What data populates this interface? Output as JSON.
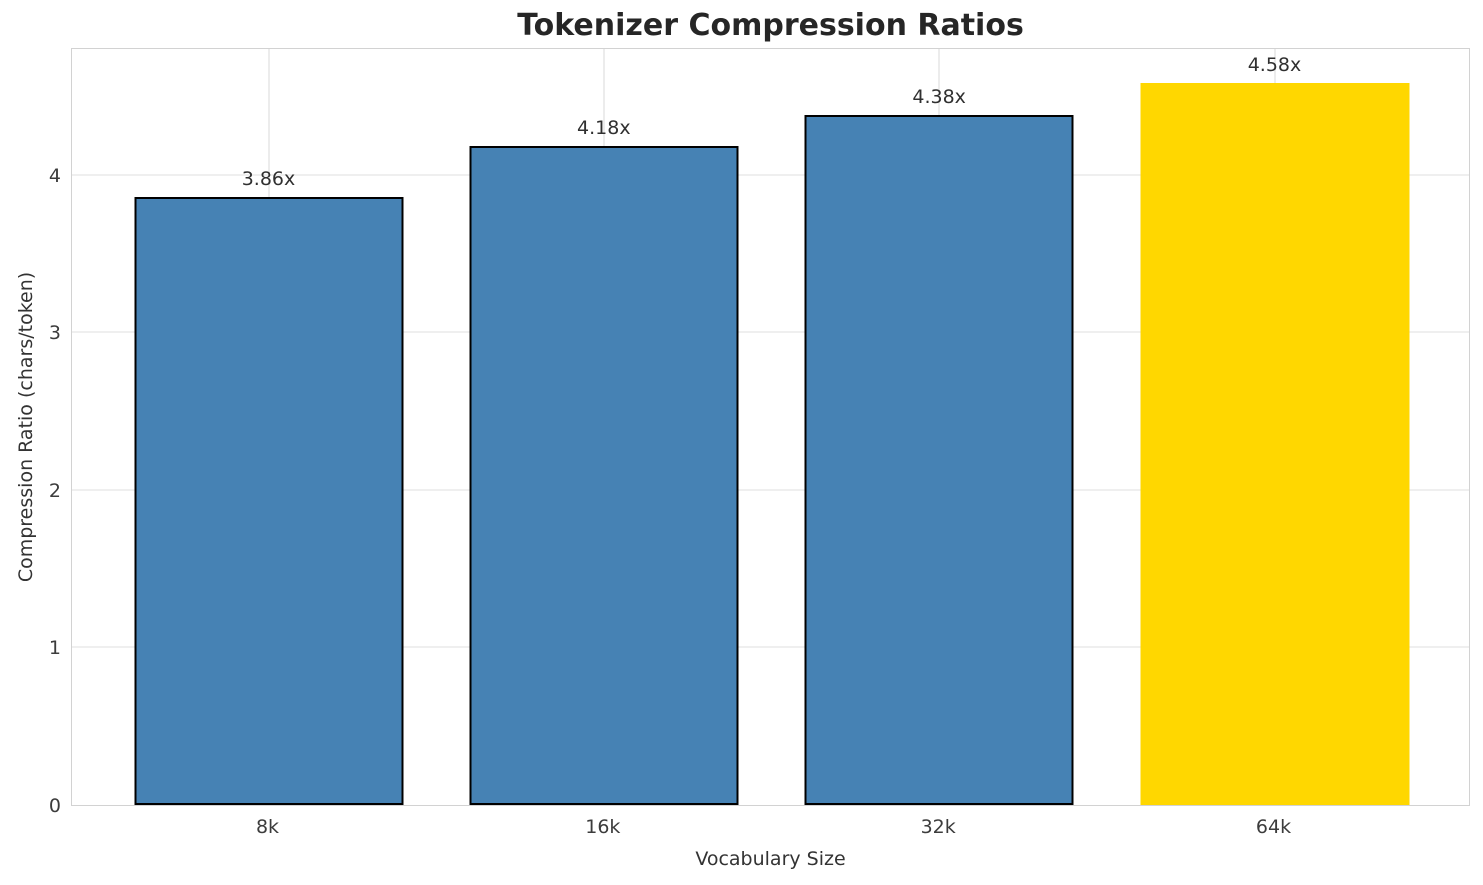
{
  "title": "Tokenizer Compression Ratios",
  "chart_data": {
    "type": "bar",
    "title": "Tokenizer Compression Ratios",
    "xlabel": "Vocabulary Size",
    "ylabel": "Compression Ratio (chars/token)",
    "categories": [
      "8k",
      "16k",
      "32k",
      "64k"
    ],
    "values": [
      3.86,
      4.18,
      4.38,
      4.58
    ],
    "bar_labels": [
      "3.86x",
      "4.18x",
      "4.38x",
      "4.58x"
    ],
    "yticks": [
      0,
      1,
      2,
      3,
      4
    ],
    "ylim": [
      0,
      4.81
    ],
    "grid": true,
    "legend": "none",
    "bar_colors": [
      "#4682b4",
      "#4682b4",
      "#4682b4",
      "#ffd700"
    ],
    "bar_edge_colors": [
      "#000000",
      "#000000",
      "#000000",
      "none"
    ],
    "highlight_index": 3
  },
  "colors": {
    "bar_blue": "#4682b4",
    "bar_gold": "#ffd700",
    "bar_edge": "#000000",
    "grid": "#ececec",
    "spine": "#d2d2d2",
    "text": "#262626",
    "background": "#ffffff"
  }
}
